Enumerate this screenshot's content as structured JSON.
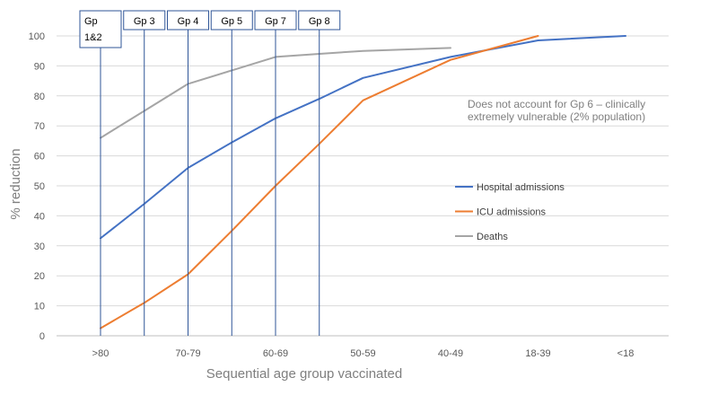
{
  "chart_data": {
    "type": "line",
    "xlabel": "Sequential age group vaccinated",
    "ylabel": "% reduction",
    "ylim": [
      0,
      100
    ],
    "yticks": [
      0,
      10,
      20,
      30,
      40,
      50,
      60,
      70,
      80,
      90,
      100
    ],
    "grid": "horizontal",
    "categories": [
      ">80",
      "70-79",
      "60-69",
      "50-59",
      "40-49",
      "18-39",
      "<18"
    ],
    "series": [
      {
        "name": "Hospital admissions",
        "color": "#4472c4",
        "points": [
          [
            0,
            32.5
          ],
          [
            0.5,
            44
          ],
          [
            1,
            56
          ],
          [
            1.5,
            64.5
          ],
          [
            2,
            72.5
          ],
          [
            2.5,
            79
          ],
          [
            3,
            86
          ],
          [
            4,
            93
          ],
          [
            5,
            98.5
          ],
          [
            6,
            100
          ]
        ]
      },
      {
        "name": "ICU admissions",
        "color": "#ed7d31",
        "points": [
          [
            0,
            2.5
          ],
          [
            0.5,
            11
          ],
          [
            1,
            20.5
          ],
          [
            1.5,
            35
          ],
          [
            2,
            50
          ],
          [
            2.5,
            64
          ],
          [
            3,
            78.5
          ],
          [
            4,
            92
          ],
          [
            5,
            100
          ]
        ]
      },
      {
        "name": "Deaths",
        "color": "#a5a5a5",
        "points": [
          [
            0,
            66
          ],
          [
            0.5,
            75
          ],
          [
            1,
            84
          ],
          [
            1.5,
            88.5
          ],
          [
            2,
            93
          ],
          [
            2.5,
            94
          ],
          [
            3,
            95
          ],
          [
            4,
            96
          ]
        ]
      }
    ],
    "groups": [
      {
        "label": "Gp\n1&2",
        "x": 0
      },
      {
        "label": "Gp 3",
        "x": 0.5
      },
      {
        "label": "Gp 4",
        "x": 1
      },
      {
        "label": "Gp 5",
        "x": 1.5
      },
      {
        "label": "Gp 7",
        "x": 2
      },
      {
        "label": "Gp 8",
        "x": 2.5
      }
    ],
    "group_line_color": "#2f5597",
    "annotation": "Does not account for Gp 6 – clinically extremely vulnerable (2% population)",
    "legend": "right"
  }
}
